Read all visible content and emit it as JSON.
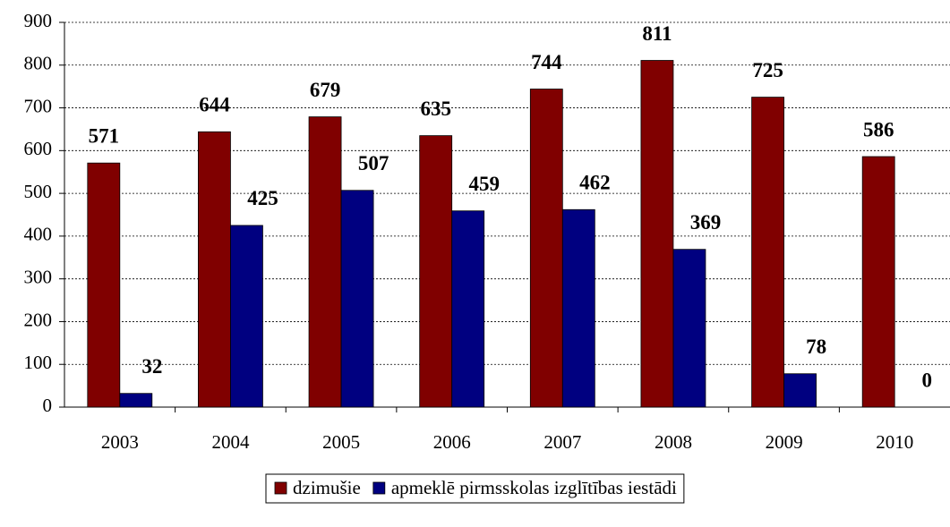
{
  "chart_data": {
    "type": "bar",
    "categories": [
      "2003",
      "2004",
      "2005",
      "2006",
      "2007",
      "2008",
      "2009",
      "2010"
    ],
    "series": [
      {
        "name": "dzimušie",
        "color": "#800000",
        "values": [
          571,
          644,
          679,
          635,
          744,
          811,
          725,
          586
        ]
      },
      {
        "name": "apmeklē pirmsskolas izglītības iestādi",
        "color": "#000080",
        "values": [
          32,
          425,
          507,
          459,
          462,
          369,
          78,
          0
        ]
      }
    ],
    "ylim": [
      0,
      900
    ],
    "yticks": [
      0,
      100,
      200,
      300,
      400,
      500,
      600,
      700,
      800,
      900
    ],
    "grid": true,
    "legend": "bottom"
  }
}
